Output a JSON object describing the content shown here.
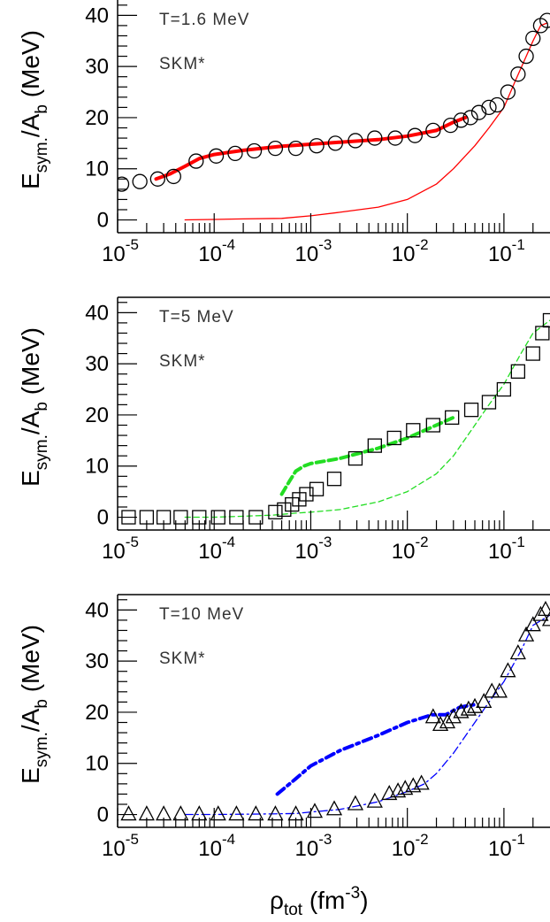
{
  "figure": {
    "x_axis_title": {
      "main": "ρ",
      "sub": "tot",
      "unit_pre": " (fm",
      "unit_exp": "-3",
      "unit_post": ")"
    }
  },
  "chart_data": [
    {
      "type": "scatter",
      "panel": "top",
      "annotation_temp": "T=1.6 MeV",
      "annotation_model": "SKM*",
      "ylabel": {
        "main": "E",
        "sub1": "sym.",
        "mid": "/A",
        "sub2": "b",
        "post": " (MeV)"
      },
      "xscale": "log",
      "xlim": [
        1e-05,
        0.3
      ],
      "ylim": [
        -2.5,
        43
      ],
      "yticks": [
        0,
        10,
        20,
        30,
        40
      ],
      "xticks": [
        {
          "base": "10",
          "exp": "-5"
        },
        {
          "base": "10",
          "exp": "-4"
        },
        {
          "base": "10",
          "exp": "-3"
        },
        {
          "base": "10",
          "exp": "-2"
        },
        {
          "base": "10",
          "exp": "-1"
        }
      ],
      "line_color": "#ff0000",
      "marker": "circle",
      "series": [
        {
          "style": "markers",
          "x": [
            1.1e-05,
            1.7e-05,
            2.6e-05,
            3.8e-05,
            6.5e-05,
            0.000105,
            0.000165,
            0.00026,
            0.00043,
            0.0007,
            0.00115,
            0.0018,
            0.0029,
            0.0046,
            0.0075,
            0.012,
            0.0185,
            0.028,
            0.036,
            0.045,
            0.055,
            0.07,
            0.085,
            0.11,
            0.14,
            0.17,
            0.2,
            0.24,
            0.28
          ],
          "y": [
            7,
            7.5,
            8,
            8.5,
            11.5,
            12.5,
            13,
            13.5,
            14,
            14,
            14.5,
            15,
            15.5,
            16,
            16,
            16.5,
            17.5,
            18.5,
            19.5,
            20,
            21,
            22,
            22.5,
            25,
            28.5,
            32,
            35.5,
            38,
            39
          ]
        },
        {
          "style": "thick",
          "x": [
            2.5e-05,
            3.5e-05,
            5e-05,
            7e-05,
            0.0001,
            0.0002,
            0.0005,
            0.001,
            0.002,
            0.005,
            0.01,
            0.02,
            0.03,
            0.04
          ],
          "y": [
            8,
            9,
            10.5,
            12,
            12.8,
            13.6,
            14.4,
            14.8,
            15.2,
            15.7,
            16.4,
            17.5,
            19.1,
            20
          ]
        },
        {
          "style": "thin",
          "x": [
            5e-05,
            0.0001,
            0.0002,
            0.0005,
            0.001,
            0.002,
            0.005,
            0.01,
            0.02,
            0.03,
            0.05,
            0.07,
            0.1,
            0.13,
            0.17,
            0.2,
            0.24,
            0.28
          ],
          "y": [
            0,
            0.1,
            0.2,
            0.3,
            0.8,
            1.5,
            2.5,
            4,
            7,
            10,
            14.5,
            18,
            22,
            27,
            32,
            35,
            38,
            38.5
          ]
        }
      ]
    },
    {
      "type": "scatter",
      "panel": "middle",
      "annotation_temp": "T=5 MeV",
      "annotation_model": "SKM*",
      "ylabel": {
        "main": "E",
        "sub1": "sym.",
        "mid": "/A",
        "sub2": "b",
        "post": " (MeV)"
      },
      "xscale": "log",
      "xlim": [
        1e-05,
        0.3
      ],
      "ylim": [
        -2.5,
        43
      ],
      "yticks": [
        0,
        10,
        20,
        30,
        40
      ],
      "xticks": [
        {
          "base": "10",
          "exp": "-5"
        },
        {
          "base": "10",
          "exp": "-4"
        },
        {
          "base": "10",
          "exp": "-3"
        },
        {
          "base": "10",
          "exp": "-2"
        },
        {
          "base": "10",
          "exp": "-1"
        }
      ],
      "line_color": "#22dd22",
      "marker": "square",
      "series": [
        {
          "style": "markers",
          "x": [
            8.5e-06,
            1.3e-05,
            2e-05,
            3e-05,
            4.5e-05,
            7e-05,
            0.00011,
            0.00017,
            0.00027,
            0.00043,
            0.00053,
            0.00064,
            0.00076,
            0.0009,
            0.00115,
            0.00175,
            0.0029,
            0.0046,
            0.0073,
            0.0115,
            0.0185,
            0.029,
            0.046,
            0.07,
            0.1,
            0.14,
            0.2,
            0.25,
            0.3
          ],
          "y": [
            0,
            0,
            0,
            0,
            0,
            0,
            0,
            0,
            0,
            1,
            1.5,
            2.5,
            3.5,
            4.5,
            5.5,
            7.5,
            11.5,
            14,
            15.5,
            17,
            18,
            19.5,
            21,
            22.5,
            25,
            28.5,
            32,
            36,
            38.5
          ]
        },
        {
          "style": "thick",
          "x": [
            0.0005,
            0.0006,
            0.0007,
            0.00085,
            0.001,
            0.002,
            0.005,
            0.01,
            0.02,
            0.03
          ],
          "y": [
            4.5,
            7,
            9,
            10,
            10.5,
            11.5,
            13.5,
            15.5,
            18,
            19.5
          ]
        },
        {
          "style": "thin",
          "x": [
            5e-05,
            0.0001,
            0.0002,
            0.0004,
            0.0007,
            0.001,
            0.002,
            0.005,
            0.01,
            0.02,
            0.03,
            0.05,
            0.07,
            0.1,
            0.15,
            0.2,
            0.3
          ],
          "y": [
            0,
            0,
            0.2,
            0.4,
            0.8,
            1,
            1.5,
            3,
            5,
            8.5,
            12,
            18,
            22,
            26,
            32,
            36,
            38.5
          ]
        }
      ]
    },
    {
      "type": "scatter",
      "panel": "bottom",
      "annotation_temp": "T=10 MeV",
      "annotation_model": "SKM*",
      "ylabel": {
        "main": "E",
        "sub1": "sym.",
        "mid": "/A",
        "sub2": "b",
        "post": " (MeV)"
      },
      "xscale": "log",
      "xlim": [
        1e-05,
        0.3
      ],
      "ylim": [
        -2.5,
        43
      ],
      "yticks": [
        0,
        10,
        20,
        30,
        40
      ],
      "xticks": [
        {
          "base": "10",
          "exp": "-5"
        },
        {
          "base": "10",
          "exp": "-4"
        },
        {
          "base": "10",
          "exp": "-3"
        },
        {
          "base": "10",
          "exp": "-2"
        },
        {
          "base": "10",
          "exp": "-1"
        }
      ],
      "line_color": "#0000ff",
      "marker": "triangle",
      "series": [
        {
          "style": "markers",
          "x": [
            8.5e-06,
            1.3e-05,
            2e-05,
            3e-05,
            4.5e-05,
            7e-05,
            0.00011,
            0.00017,
            0.00027,
            0.00043,
            0.0007,
            0.0011,
            0.00175,
            0.0029,
            0.0046,
            0.0065,
            0.008,
            0.0095,
            0.0115,
            0.014,
            0.0185,
            0.022,
            0.026,
            0.03,
            0.036,
            0.043,
            0.05,
            0.062,
            0.075,
            0.09,
            0.11,
            0.14,
            0.17,
            0.2,
            0.24,
            0.27,
            0.3
          ],
          "y": [
            0,
            0,
            0,
            0,
            0,
            0,
            0,
            0,
            0,
            0,
            0,
            0.5,
            1,
            2,
            2.5,
            4,
            4.5,
            5,
            5.5,
            6,
            19,
            17.5,
            18,
            19,
            20,
            20.5,
            21,
            22,
            24,
            24,
            28,
            31.5,
            35,
            37,
            39,
            40,
            38
          ]
        },
        {
          "style": "thick",
          "x": [
            0.00045,
            0.0007,
            0.001,
            0.002,
            0.005,
            0.01,
            0.018,
            0.025,
            0.035,
            0.05
          ],
          "y": [
            4,
            7,
            9.5,
            12.5,
            15.5,
            18,
            19.5,
            19.5,
            21,
            21.5
          ]
        },
        {
          "style": "thin",
          "x": [
            5e-05,
            0.0001,
            0.0003,
            0.0007,
            0.001,
            0.002,
            0.005,
            0.01,
            0.015,
            0.02,
            0.03,
            0.05,
            0.07,
            0.1,
            0.15,
            0.2,
            0.3
          ],
          "y": [
            0,
            0,
            0.1,
            0.2,
            0.5,
            1,
            2.5,
            4.5,
            6,
            8,
            12,
            18,
            22,
            26,
            32,
            37,
            39
          ]
        }
      ]
    }
  ]
}
